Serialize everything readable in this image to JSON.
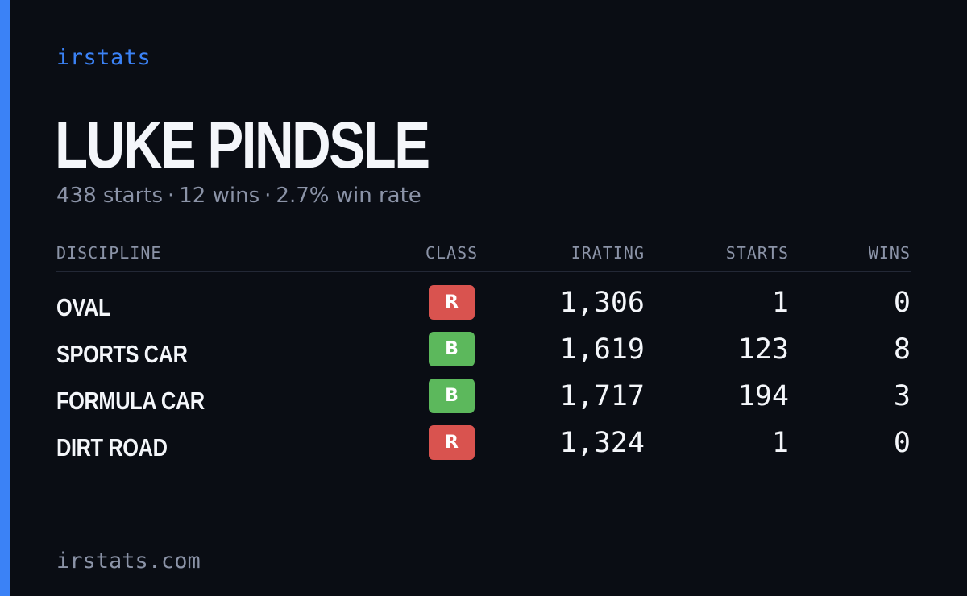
{
  "brand": "irstats",
  "driver": {
    "name": "LUKE PINDSLE",
    "starts_text": "438 starts",
    "wins_text": "12 wins",
    "win_rate_text": "2.7% win rate",
    "separator": "·"
  },
  "table": {
    "headers": {
      "discipline": "DISCIPLINE",
      "class": "CLASS",
      "irating": "IRATING",
      "starts": "STARTS",
      "wins": "WINS"
    },
    "rows": [
      {
        "discipline": "OVAL",
        "class": "R",
        "class_color": "#d9534f",
        "irating": "1,306",
        "starts": "1",
        "wins": "0"
      },
      {
        "discipline": "SPORTS CAR",
        "class": "B",
        "class_color": "#5cb85c",
        "irating": "1,619",
        "starts": "123",
        "wins": "8"
      },
      {
        "discipline": "FORMULA CAR",
        "class": "B",
        "class_color": "#5cb85c",
        "irating": "1,717",
        "starts": "194",
        "wins": "3"
      },
      {
        "discipline": "DIRT ROAD",
        "class": "R",
        "class_color": "#d9534f",
        "irating": "1,324",
        "starts": "1",
        "wins": "0"
      }
    ]
  },
  "footer": "irstats.com",
  "colors": {
    "accent": "#3b82f6",
    "background": "#0a0d14",
    "class_r": "#d9534f",
    "class_b": "#5cb85c"
  }
}
